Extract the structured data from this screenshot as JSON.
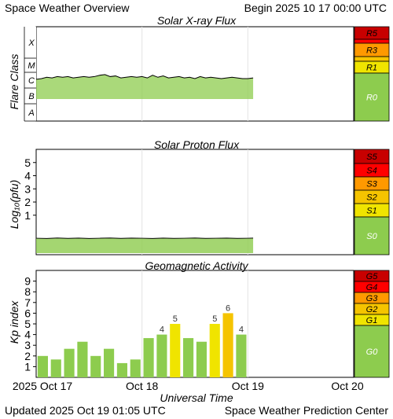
{
  "header": {
    "title": "Space Weather Overview",
    "begin": "Begin 2025 10 17 00:00 UTC"
  },
  "footer": {
    "updated": "Updated 2025 Oct 19 01:05 UTC",
    "source": "Space Weather Prediction Center"
  },
  "colors": {
    "green": "#8dcc4e",
    "yellow": "#f0e400",
    "gold": "#f5c400",
    "orange": "#ff9900",
    "red": "#ff0000",
    "darkred": "#c80000",
    "scaleText": "#000000"
  },
  "time_axis": {
    "label": "Universal Time",
    "ticks": [
      "2025 Oct 17",
      "Oct 18",
      "Oct 19",
      "Oct 20"
    ],
    "range_days": [
      0,
      3
    ]
  },
  "chart_data": [
    {
      "type": "area",
      "title": "Solar X-ray Flux",
      "ylabel": "Flare Class",
      "class_labels": [
        "X",
        "M",
        "C",
        "B",
        "A"
      ],
      "ylim_log10_wm2": [
        -9,
        -2
      ],
      "x_days": [
        0.0,
        0.05,
        0.1,
        0.15,
        0.2,
        0.25,
        0.3,
        0.35,
        0.4,
        0.45,
        0.5,
        0.55,
        0.6,
        0.65,
        0.7,
        0.75,
        0.8,
        0.85,
        0.9,
        0.95,
        1.0,
        1.05,
        1.1,
        1.15,
        1.2,
        1.25,
        1.3,
        1.35,
        1.4,
        1.45,
        1.5,
        1.55,
        1.6,
        1.65,
        1.7,
        1.75,
        1.8,
        1.85,
        1.9,
        1.95,
        2.0,
        2.05
      ],
      "log10_flux": [
        -5.9,
        -5.85,
        -5.75,
        -5.8,
        -5.7,
        -5.75,
        -5.7,
        -5.8,
        -5.75,
        -5.7,
        -5.75,
        -5.7,
        -5.6,
        -5.55,
        -5.7,
        -5.65,
        -5.8,
        -5.75,
        -5.7,
        -5.75,
        -5.7,
        -5.8,
        -5.6,
        -5.75,
        -5.65,
        -5.8,
        -5.75,
        -5.7,
        -5.8,
        -5.75,
        -5.85,
        -5.7,
        -5.8,
        -5.75,
        -5.8,
        -5.85,
        -5.8,
        -5.75,
        -5.8,
        -5.85,
        -5.85,
        -5.8
      ],
      "scale": [
        {
          "label": "R5",
          "color": "#c80000"
        },
        {
          "label": "R3",
          "color": "#ff9900"
        },
        {
          "label": "R1",
          "color": "#f0e400"
        },
        {
          "label": "R0",
          "color": "#8dcc4e"
        }
      ]
    },
    {
      "type": "area",
      "title": "Solar Proton Flux",
      "ylabel": "Log₁₀(pfu)",
      "ylim": [
        -2,
        6
      ],
      "yticks": [
        1,
        2,
        3,
        4,
        5
      ],
      "x_days": [
        0.0,
        0.1,
        0.2,
        0.3,
        0.4,
        0.5,
        0.6,
        0.7,
        0.8,
        0.9,
        1.0,
        1.1,
        1.2,
        1.3,
        1.4,
        1.5,
        1.6,
        1.7,
        1.8,
        1.9,
        2.0,
        2.05
      ],
      "log10_pfu": [
        -0.75,
        -0.77,
        -0.73,
        -0.76,
        -0.74,
        -0.77,
        -0.75,
        -0.73,
        -0.76,
        -0.74,
        -0.75,
        -0.77,
        -0.74,
        -0.76,
        -0.75,
        -0.73,
        -0.76,
        -0.75,
        -0.74,
        -0.76,
        -0.75,
        -0.74
      ],
      "scale": [
        {
          "label": "S5",
          "color": "#c80000"
        },
        {
          "label": "S4",
          "color": "#ff0000"
        },
        {
          "label": "S3",
          "color": "#ff9900"
        },
        {
          "label": "S2",
          "color": "#f5c400"
        },
        {
          "label": "S1",
          "color": "#f0e400"
        },
        {
          "label": "S0",
          "color": "#8dcc4e"
        }
      ]
    },
    {
      "type": "bar",
      "title": "Geomagnetic Activity",
      "ylabel": "Kp index",
      "ylim": [
        0,
        10
      ],
      "yticks": [
        1,
        2,
        3,
        4,
        5,
        6,
        7,
        8,
        9
      ],
      "x_days": [
        0.0625,
        0.1875,
        0.3125,
        0.4375,
        0.5625,
        0.6875,
        0.8125,
        0.9375,
        1.0625,
        1.1875,
        1.3125,
        1.4375,
        1.5625,
        1.6875,
        1.8125,
        1.9375
      ],
      "kp": [
        2,
        1.67,
        2.67,
        3.33,
        2,
        2.67,
        1.33,
        1.67,
        3.67,
        4,
        5,
        3.67,
        3.33,
        5,
        6,
        4
      ],
      "labels": [
        "",
        "",
        "",
        "",
        "",
        "",
        "",
        "",
        "",
        "4",
        "5",
        "",
        "",
        "5",
        "6",
        "4"
      ],
      "scale": [
        {
          "label": "G5",
          "color": "#c80000"
        },
        {
          "label": "G4",
          "color": "#ff0000"
        },
        {
          "label": "G3",
          "color": "#ff9900"
        },
        {
          "label": "G2",
          "color": "#f5c400"
        },
        {
          "label": "G1",
          "color": "#f0e400"
        },
        {
          "label": "G0",
          "color": "#8dcc4e"
        }
      ]
    }
  ]
}
